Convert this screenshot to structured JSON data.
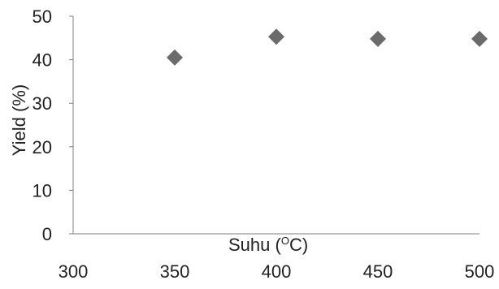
{
  "chart_data": {
    "type": "scatter",
    "title": "",
    "xlabel": "Suhu (",
    "xlabel_degree": "O",
    "xlabel_unit": "C)",
    "ylabel": "Yield (%)",
    "xlim": [
      300,
      500
    ],
    "ylim": [
      0,
      50
    ],
    "xticks": [
      300,
      350,
      400,
      450,
      500
    ],
    "yticks": [
      0,
      10,
      20,
      30,
      40,
      50
    ],
    "marker": "diamond",
    "grid": false,
    "legend": false,
    "series": [
      {
        "color": "#6b6b6b",
        "points": [
          {
            "x": 350,
            "y": 40.5
          },
          {
            "x": 400,
            "y": 45.3
          },
          {
            "x": 450,
            "y": 44.8
          },
          {
            "x": 500,
            "y": 44.8
          }
        ]
      }
    ]
  }
}
